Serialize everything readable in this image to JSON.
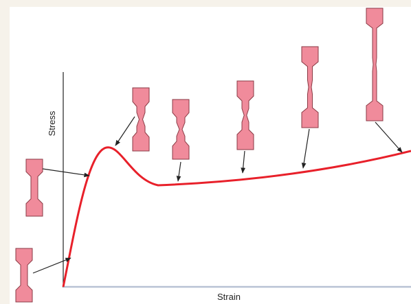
{
  "axes": {
    "y_label": "Stress",
    "x_label": "Strain"
  }
}
